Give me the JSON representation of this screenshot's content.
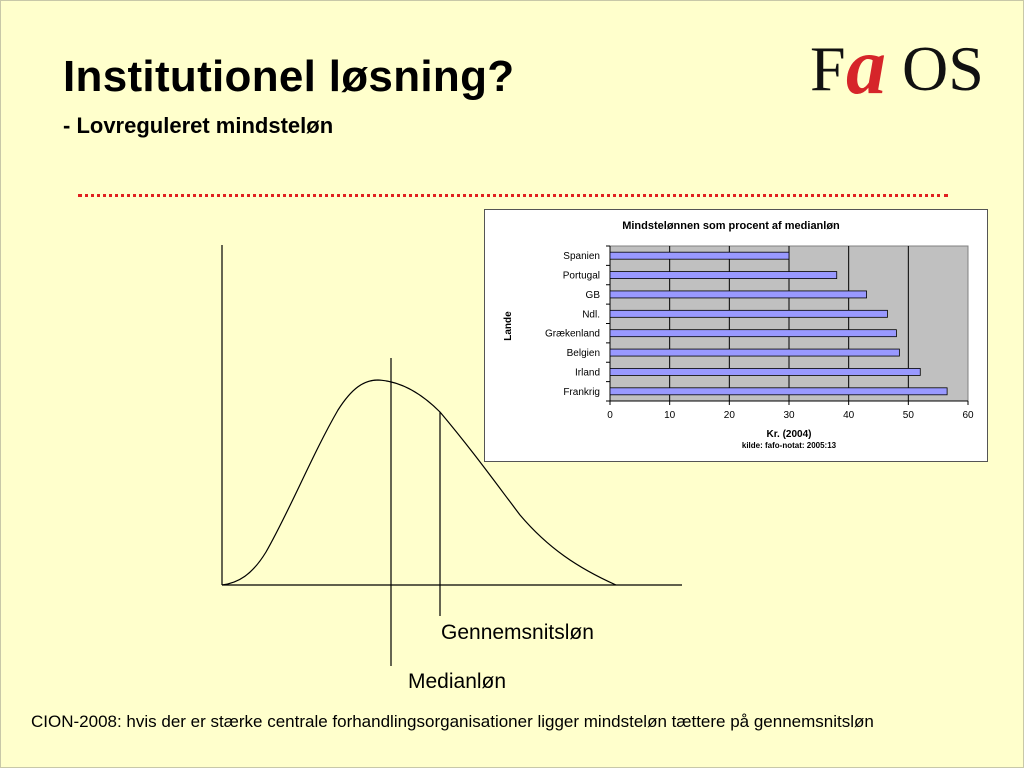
{
  "slide": {
    "title": "Institutionel løsning?",
    "subtitle": "- Lovreguleret mindsteløn",
    "logo": {
      "f": "F",
      "a": "a",
      "os": "OS",
      "accent_color": "#d6252a"
    },
    "rule_color": "#e02020",
    "background": "#ffffcc"
  },
  "diagram": {
    "mean_label": "Gennemsnitsløn",
    "median_label": "Medianløn"
  },
  "footnote": "CION-2008: hvis der er stærke centrale forhandlingsorganisationer ligger mindsteløn tættere på gennemsnitsløn",
  "chart_data": {
    "type": "bar",
    "orientation": "horizontal",
    "title": "Mindstelønnen som procent af medianløn",
    "xlabel": "Kr. (2004)",
    "ylabel": "Lande",
    "source": "kilde: fafo-notat: 2005:13",
    "categories": [
      "Spanien",
      "Portugal",
      "GB",
      "Ndl.",
      "Grækenland",
      "Belgien",
      "Irland",
      "Frankrig"
    ],
    "values": [
      30,
      38,
      43,
      46.5,
      48,
      48.5,
      52,
      56.5
    ],
    "xlim": [
      0,
      60
    ],
    "xticks": [
      0,
      10,
      20,
      30,
      40,
      50,
      60
    ],
    "grid": true,
    "bar_color": "#9999ff",
    "plot_bg": "#c0c0c0"
  }
}
